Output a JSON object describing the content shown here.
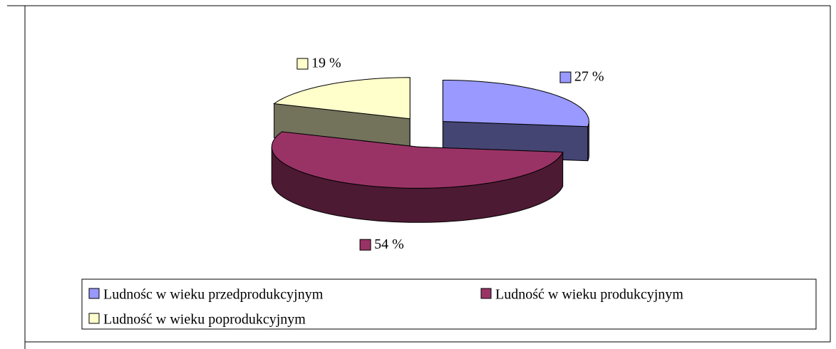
{
  "chart_data": {
    "type": "pie",
    "categories": [
      "Ludnośc w wieku przedprodukcyjnym",
      "Ludność w wieku produkcyjnym",
      "Ludność w wieku poprodukcyjnym"
    ],
    "values": [
      27,
      54,
      19
    ],
    "value_labels": [
      "27 %",
      "54 %",
      "19 %"
    ],
    "colors": [
      "#9999ff",
      "#993366",
      "#ffffcc"
    ],
    "legend": "bottom"
  }
}
